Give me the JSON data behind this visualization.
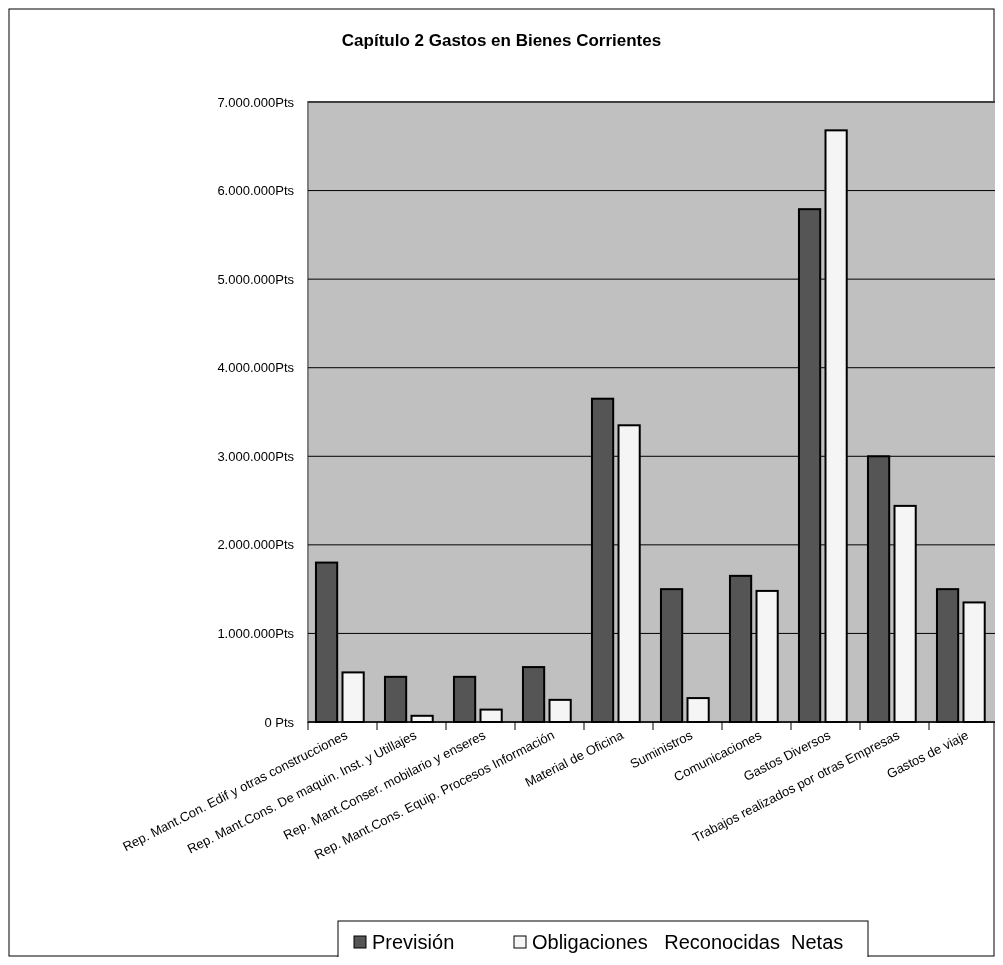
{
  "chart_data": {
    "type": "bar",
    "title": "Capítulo 2 Gastos en Bienes Corrientes",
    "categories": [
      "Rep. Mant.Con. Edif y otras construcciones",
      "Rep. Mant.Cons. De maquin. Inst. y Utillajes",
      "Rep. Mant.Conser. mobilario y enseres",
      "Rep. Mant.Cons. Equip. Procesos Información",
      "Material de Oficina",
      "Suministros",
      "Comunicaciones",
      "Gastos Diversos",
      "Trabajos realizados por otras Empresas",
      "Gastos de viaje"
    ],
    "series": [
      {
        "name": "Previsión",
        "color": "#555555",
        "values": [
          1800000,
          510000,
          510000,
          620000,
          3650000,
          1500000,
          1650000,
          5790000,
          3000000,
          1500000
        ]
      },
      {
        "name": "Obligaciones   Reconocidas  Netas",
        "color": "#f5f5f5",
        "values": [
          560000,
          70000,
          140000,
          250000,
          3350000,
          270000,
          1480000,
          6680000,
          2440000,
          1350000
        ]
      }
    ],
    "ylim": [
      0,
      7000000
    ],
    "yticks": [
      {
        "value": 0,
        "label": "0 Pts"
      },
      {
        "value": 1000000,
        "label": "1.000.000Pts"
      },
      {
        "value": 2000000,
        "label": "2.000.000Pts"
      },
      {
        "value": 3000000,
        "label": "3.000.000Pts"
      },
      {
        "value": 4000000,
        "label": "4.000.000Pts"
      },
      {
        "value": 5000000,
        "label": "5.000.000Pts"
      },
      {
        "value": 6000000,
        "label": "6.000.000Pts"
      },
      {
        "value": 7000000,
        "label": "7.000.000Pts"
      }
    ],
    "grid": "y",
    "legend": "bottom"
  }
}
